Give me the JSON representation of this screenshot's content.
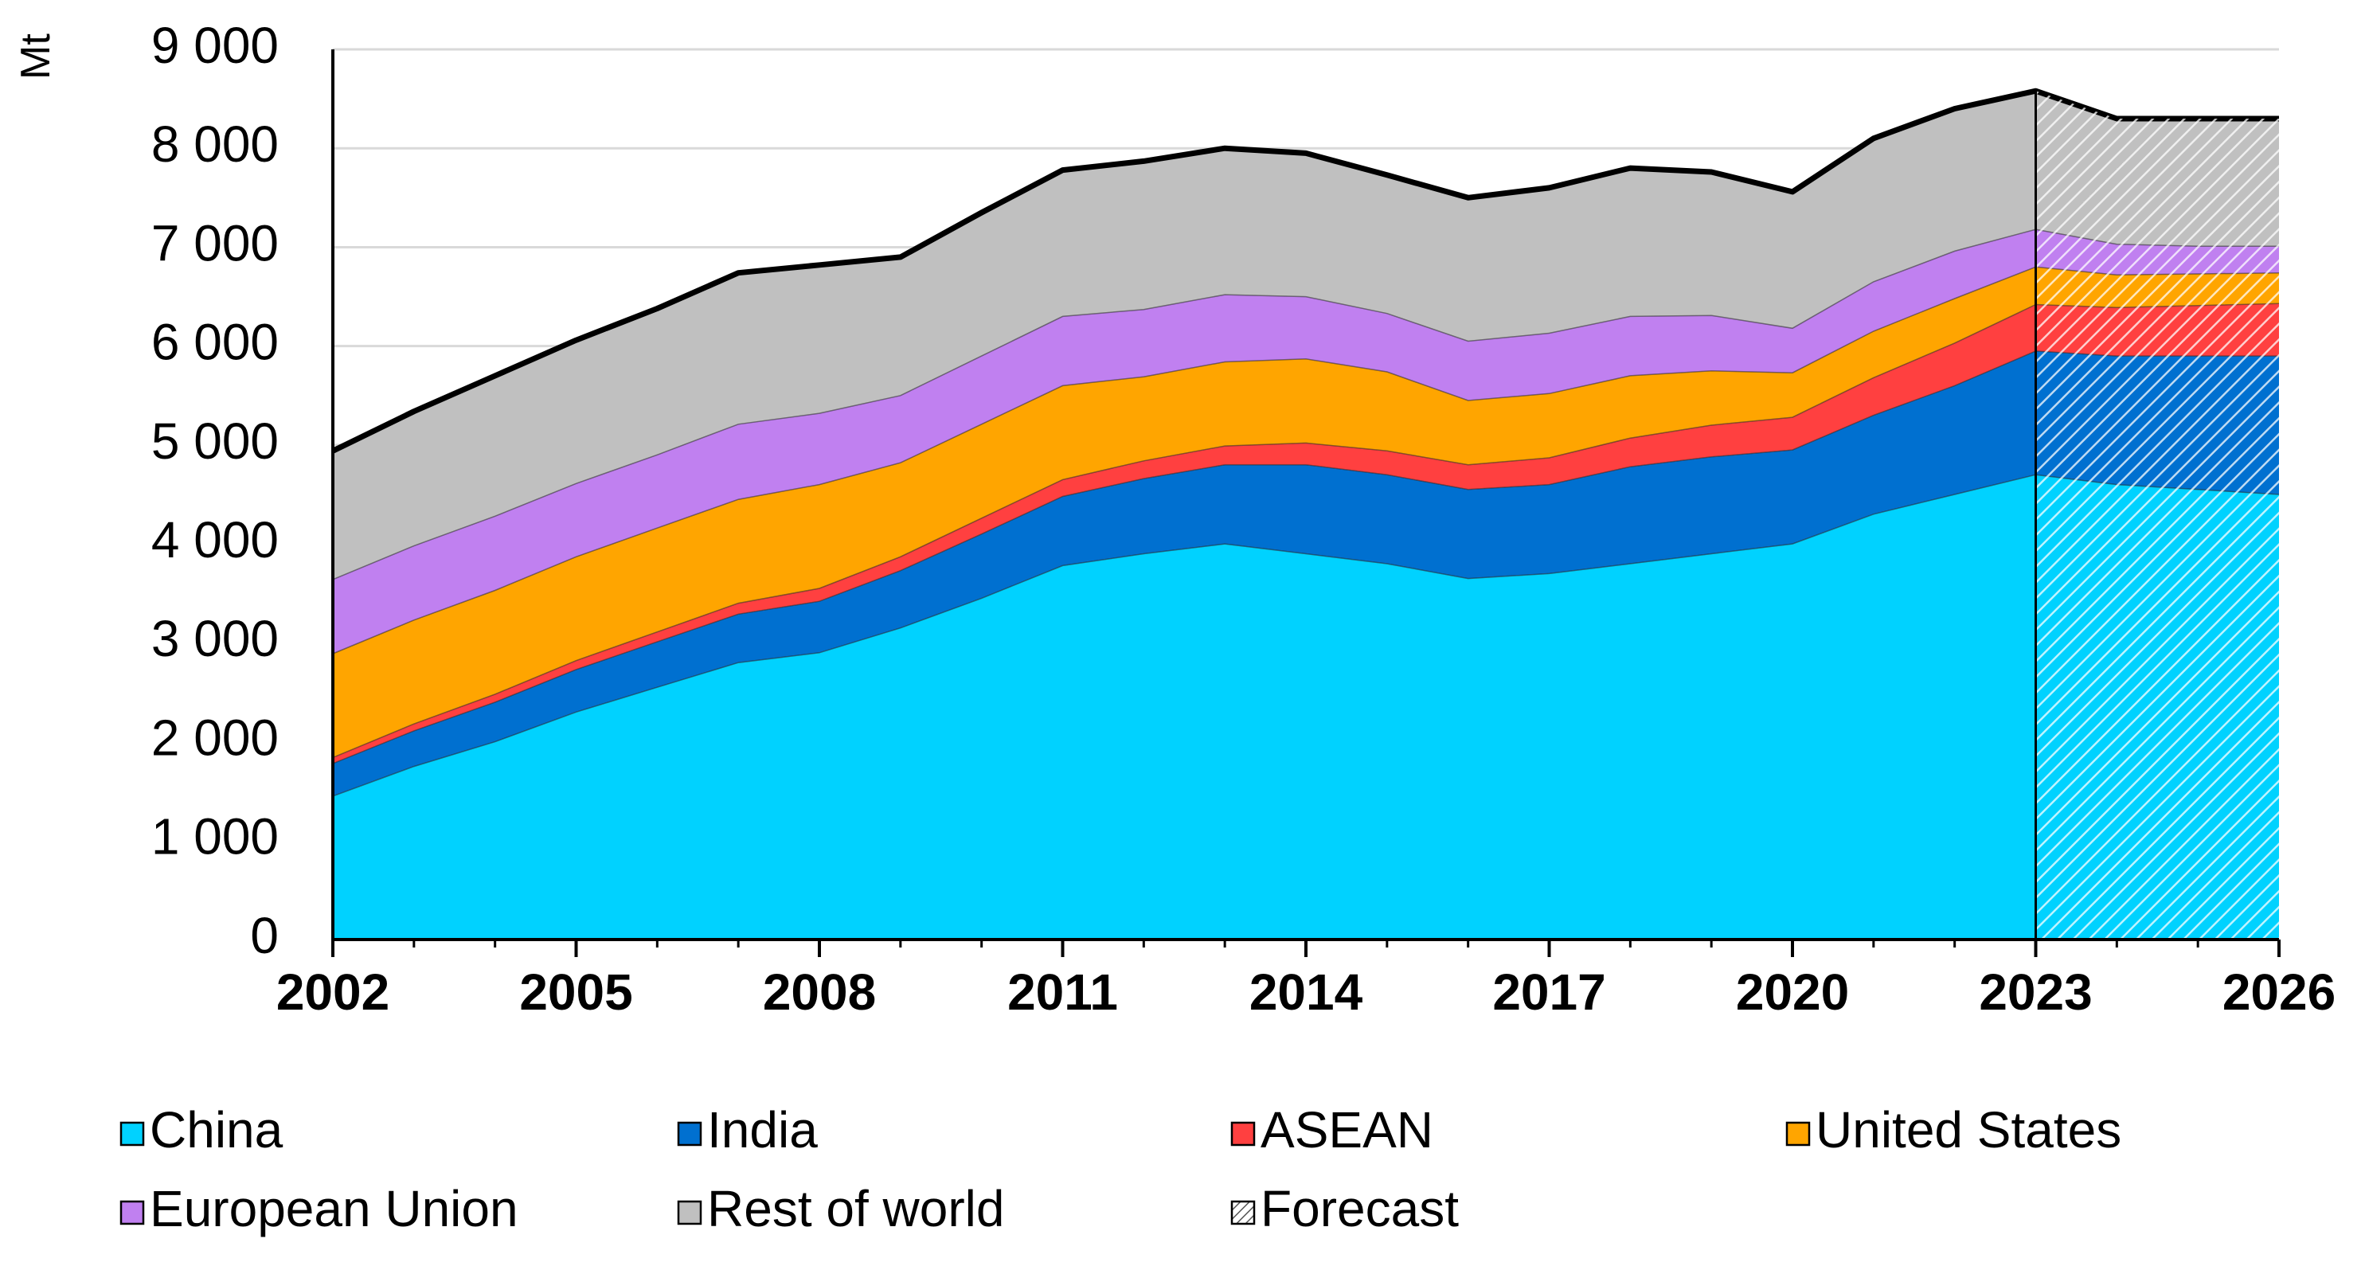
{
  "chart_data": {
    "type": "area",
    "ylabel": "Mt",
    "xlabel": "",
    "ylim": [
      0,
      9000
    ],
    "yticks": [
      0,
      1000,
      2000,
      3000,
      4000,
      5000,
      6000,
      7000,
      8000,
      9000
    ],
    "ytick_labels": [
      "0",
      "1 000",
      "2 000",
      "3 000",
      "4 000",
      "5 000",
      "6 000",
      "7 000",
      "8 000",
      "9 000"
    ],
    "xlim": [
      2002,
      2026
    ],
    "xticks": [
      2002,
      2005,
      2008,
      2011,
      2014,
      2017,
      2020,
      2023,
      2026
    ],
    "xtick_labels": [
      "2002",
      "2005",
      "2008",
      "2011",
      "2014",
      "2017",
      "2020",
      "2023",
      "2026"
    ],
    "forecast_start": 2023,
    "stacked": true,
    "x": [
      2002,
      2003,
      2004,
      2005,
      2006,
      2007,
      2008,
      2009,
      2010,
      2011,
      2012,
      2013,
      2014,
      2015,
      2016,
      2017,
      2018,
      2019,
      2020,
      2021,
      2022,
      2023,
      2024,
      2025,
      2026
    ],
    "series": [
      {
        "name": "China",
        "color": "#00D2FF",
        "values": [
          1450,
          1750,
          2000,
          2300,
          2550,
          2800,
          2900,
          3150,
          3450,
          3780,
          3900,
          4000,
          3900,
          3800,
          3650,
          3700,
          3800,
          3900,
          4000,
          4300,
          4500,
          4700,
          4600,
          4550,
          4500
        ]
      },
      {
        "name": "India",
        "color": "#0070D0",
        "values": [
          330,
          360,
          400,
          430,
          460,
          490,
          520,
          580,
          650,
          700,
          760,
          800,
          900,
          900,
          900,
          900,
          980,
          980,
          950,
          1000,
          1100,
          1250,
          1300,
          1350,
          1400
        ]
      },
      {
        "name": "ASEAN",
        "color": "#FF4040",
        "values": [
          60,
          70,
          80,
          90,
          100,
          110,
          130,
          140,
          160,
          170,
          180,
          190,
          220,
          240,
          250,
          270,
          290,
          320,
          330,
          380,
          430,
          470,
          490,
          510,
          530
        ]
      },
      {
        "name": "United States",
        "color": "#FFA500",
        "values": [
          1050,
          1050,
          1050,
          1050,
          1050,
          1050,
          1050,
          950,
          950,
          950,
          850,
          850,
          850,
          800,
          650,
          650,
          630,
          550,
          450,
          470,
          450,
          380,
          330,
          320,
          310
        ]
      },
      {
        "name": "European Union",
        "color": "#C080F0",
        "values": [
          750,
          750,
          750,
          740,
          740,
          760,
          720,
          680,
          690,
          700,
          680,
          680,
          630,
          590,
          600,
          610,
          600,
          560,
          450,
          500,
          480,
          380,
          310,
          280,
          270
        ]
      },
      {
        "name": "Rest of world",
        "color": "#C0C0C0",
        "values": [
          1300,
          1360,
          1420,
          1450,
          1480,
          1530,
          1500,
          1400,
          1450,
          1480,
          1500,
          1480,
          1450,
          1400,
          1450,
          1470,
          1500,
          1450,
          1380,
          1450,
          1440,
          1400,
          1270,
          1290,
          1290
        ]
      }
    ],
    "legend": {
      "placement": "bottom",
      "entries": [
        "China",
        "India",
        "ASEAN",
        "United States",
        "European Union",
        "Rest of world",
        "Forecast"
      ]
    },
    "grid": true
  }
}
